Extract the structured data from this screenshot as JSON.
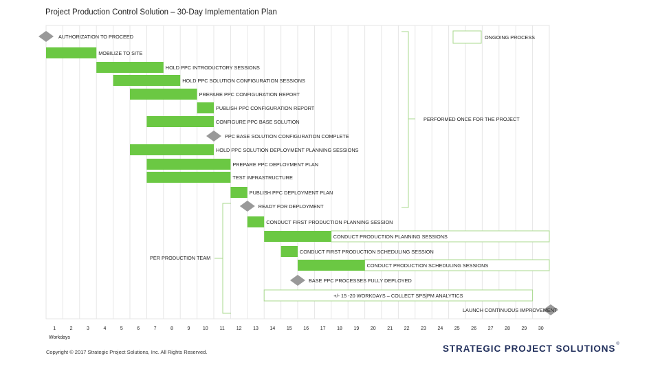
{
  "title": "Project Production Control Solution – 30-Day Implementation Plan",
  "chart_data": {
    "type": "gantt",
    "x_axis": {
      "label": "Workdays",
      "ticks": [
        1,
        2,
        3,
        4,
        5,
        6,
        7,
        8,
        9,
        10,
        11,
        12,
        13,
        14,
        15,
        16,
        17,
        18,
        19,
        20,
        21,
        22,
        23,
        24,
        25,
        26,
        27,
        28,
        29,
        30
      ]
    },
    "legend": {
      "label": "ONGOING PROCESS",
      "position": "top-right"
    },
    "tasks": [
      {
        "label": "AUTHORIZATION TO PROCEED",
        "kind": "milestone",
        "at": 1
      },
      {
        "label": "MOBILIZE TO SITE",
        "kind": "bar",
        "start": 1,
        "end": 3
      },
      {
        "label": "HOLD PPC INTRODUCTORY SESSIONS",
        "kind": "bar",
        "start": 4,
        "end": 7
      },
      {
        "label": "HOLD PPC SOLUTION CONFIGURATION SESSIONS",
        "kind": "bar",
        "start": 5,
        "end": 8
      },
      {
        "label": "PREPARE PPC CONFIGURATION REPORT",
        "kind": "bar",
        "start": 6,
        "end": 9
      },
      {
        "label": "PUBLISH PPC CONFIGURATION REPORT",
        "kind": "bar",
        "start": 10,
        "end": 10
      },
      {
        "label": "CONFIGURE PPC BASE SOLUTION",
        "kind": "bar",
        "start": 7,
        "end": 10
      },
      {
        "label": "PPC BASE SOLUTION CONFIGURATION COMPLETE",
        "kind": "milestone",
        "at": 11
      },
      {
        "label": "HOLD PPC SOLUTION DEPLOYMENT PLANNING SESSIONS",
        "kind": "bar",
        "start": 6,
        "end": 10
      },
      {
        "label": "PREPARE PPC DEPLOYMENT PLAN",
        "kind": "bar",
        "start": 7,
        "end": 11
      },
      {
        "label": "TEST INFRASTRUCTURE",
        "kind": "bar",
        "start": 7,
        "end": 11
      },
      {
        "label": "PUBLISH PPC DEPLOYMENT PLAN",
        "kind": "bar",
        "start": 12,
        "end": 12
      },
      {
        "label": "READY FOR DEPLOYMENT",
        "kind": "milestone",
        "at": 13
      },
      {
        "label": "CONDUCT FIRST PRODUCTION PLANNING SESSION",
        "kind": "bar",
        "start": 13,
        "end": 13
      },
      {
        "label": "CONDUCT PRODUCTION PLANNING SESSIONS",
        "kind": "bar",
        "start": 14,
        "end": 17,
        "ongoing_until": 30
      },
      {
        "label": "CONDUCT FIRST PRODUCTION SCHEDULING SESSION",
        "kind": "bar",
        "start": 15,
        "end": 15
      },
      {
        "label": "CONDUCT PRODUCTION SCHEDULING SESSIONS",
        "kind": "bar",
        "start": 16,
        "end": 19,
        "ongoing_until": 30
      },
      {
        "label": "BASE PPC PROCESSES FULLY DEPLOYED",
        "kind": "milestone",
        "at": 16
      },
      {
        "label": "+/- 15 -20 WORKDAYS – COLLECT SPS|PM ANALYTICS",
        "kind": "ongoing",
        "start": 14,
        "end": 29
      },
      {
        "label": "LAUNCH CONTINUOUS IMPROVEMENT",
        "kind": "milestone",
        "at": 30
      }
    ],
    "brackets": [
      {
        "label": "PERFORMED ONCE FOR THE PROJECT"
      },
      {
        "label": "PER  PRODUCTION TEAM"
      }
    ],
    "colors": {
      "bar": "#6bc843",
      "milestone": "#999999",
      "ongoing_border": "#a8d88e",
      "grid": "#e6e6e6",
      "bracket": "#a8d88e"
    }
  },
  "footer": {
    "copyright": "Copyright © 2017 Strategic Project Solutions, Inc. All Rights Reserved.",
    "logo_text": "STRATEGIC PROJECT SOLUTIONS",
    "logo_mark": "®"
  }
}
